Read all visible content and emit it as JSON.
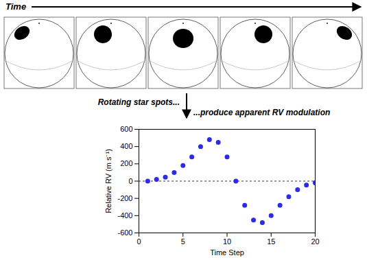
{
  "chart_data": {
    "type": "scatter",
    "annotations": [
      "Time",
      "Rotating star spots...",
      "...produce apparent RV modulation"
    ],
    "x_label": "Time Step",
    "y_label": "Relative RV (m s⁻¹)",
    "x": [
      1,
      2,
      3,
      4,
      5,
      6,
      7,
      8,
      9,
      10,
      11,
      12,
      13,
      14,
      15,
      16,
      17,
      18,
      19,
      20
    ],
    "values": [
      0,
      20,
      45,
      100,
      180,
      280,
      400,
      480,
      450,
      280,
      0,
      -280,
      -450,
      -480,
      -400,
      -280,
      -180,
      -100,
      -45,
      -20
    ],
    "color": "#2b2be8",
    "marker": "circle",
    "xlim": [
      0,
      20
    ],
    "xticks": [
      0,
      5,
      10,
      15,
      20
    ],
    "ylim": [
      -600,
      600
    ],
    "yticks": [
      -600,
      -400,
      -200,
      0,
      200,
      400,
      600
    ],
    "hlines": [
      {
        "y": 0,
        "line_style": "dashed"
      }
    ],
    "grid": false
  }
}
